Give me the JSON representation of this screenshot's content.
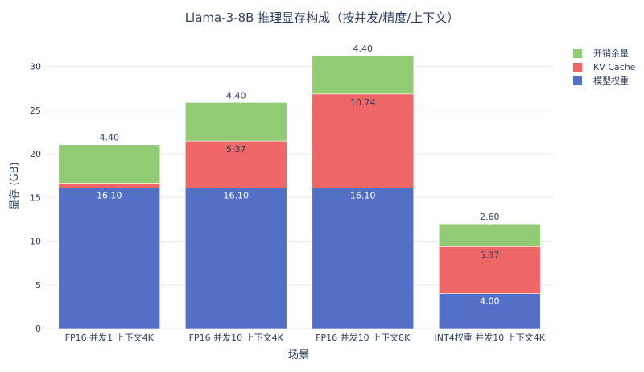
{
  "chart_data": {
    "type": "bar",
    "stacked": true,
    "title": "Llama-3-8B 推理显存构成（按并发/精度/上下文）",
    "xlabel": "场景",
    "ylabel": "显存 (GB)",
    "ylim": [
      0,
      33
    ],
    "yticks": [
      0,
      5,
      10,
      15,
      20,
      25,
      30
    ],
    "grid": true,
    "legend_position": "top-right",
    "categories": [
      "FP16 并发1 上下文4K",
      "FP16 并发10 上下文4K",
      "FP16 并发10 上下文8K",
      "INT4权重 并发10 上下文4K"
    ],
    "series": [
      {
        "name": "模型权重",
        "color": "#5470c6",
        "values": [
          16.1,
          16.1,
          16.1,
          4.0
        ],
        "labels": [
          "16.10",
          "16.10",
          "16.10",
          "4.00"
        ]
      },
      {
        "name": "KV Cache",
        "color": "#ef6666",
        "values": [
          0.54,
          5.37,
          10.74,
          5.37
        ],
        "labels": [
          "",
          "5.37",
          "10.74",
          "5.37"
        ]
      },
      {
        "name": "开销余量",
        "color": "#91cc75",
        "values": [
          4.4,
          4.4,
          4.4,
          2.6
        ],
        "labels": [
          "4.40",
          "4.40",
          "4.40",
          "2.60"
        ]
      }
    ]
  }
}
